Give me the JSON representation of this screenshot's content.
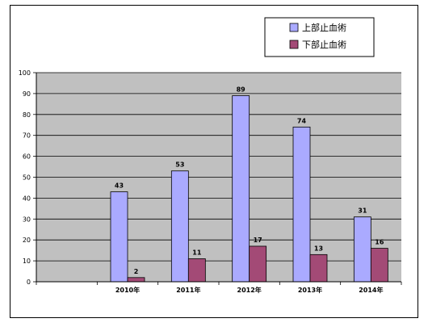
{
  "chart_data": {
    "type": "bar",
    "categories": [
      "",
      "2010年",
      "2011年",
      "2012年",
      "2013年",
      "2014年"
    ],
    "series": [
      {
        "name": "上部止血術",
        "values": [
          null,
          43,
          53,
          89,
          74,
          31
        ],
        "color": "#aaaaff"
      },
      {
        "name": "下部止血術",
        "values": [
          null,
          2,
          11,
          17,
          13,
          16
        ],
        "color": "#a34a76"
      }
    ],
    "ylim": [
      0,
      100
    ],
    "yticks": [
      0,
      10,
      20,
      30,
      40,
      50,
      60,
      70,
      80,
      90,
      100
    ],
    "grid": true,
    "plot_background": "#c0c0c0",
    "legend_position": "top-right"
  }
}
